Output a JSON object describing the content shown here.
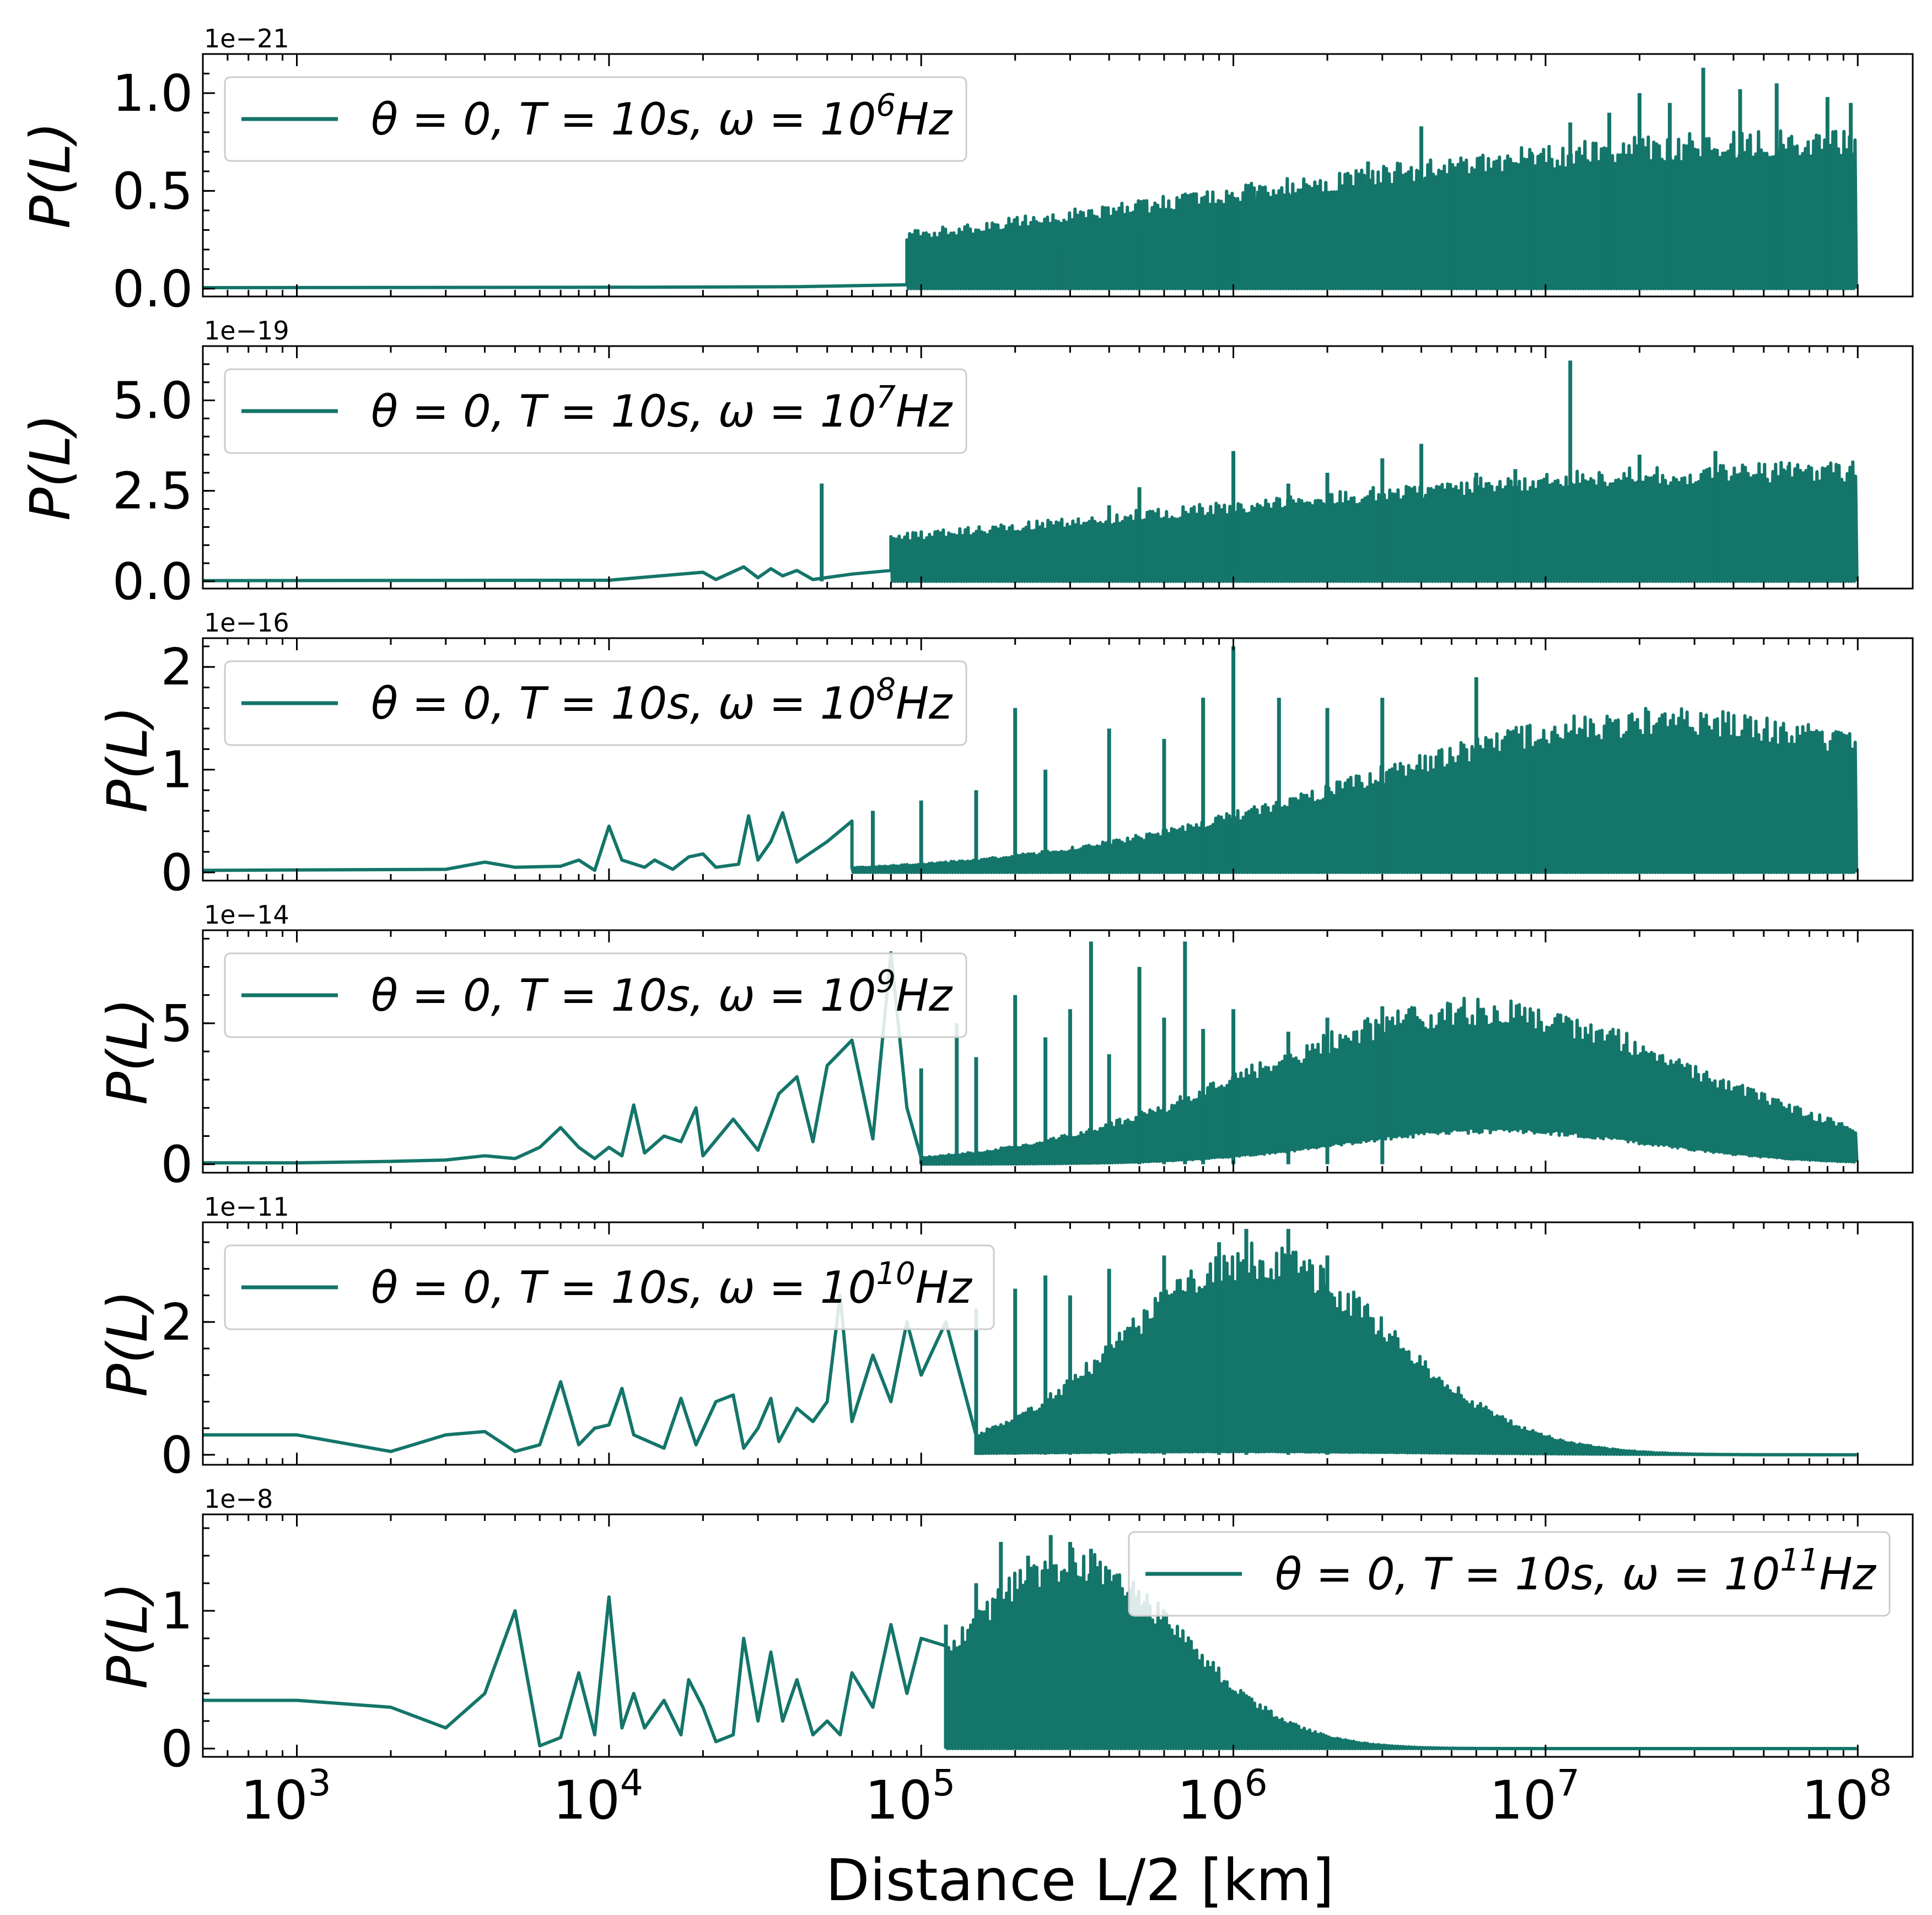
{
  "colors": {
    "series": "#14756a",
    "frame": "#000000",
    "legend_border": "#cccccc",
    "background": "#ffffff"
  },
  "chart_data": [
    {
      "type": "line",
      "exponent_label": "1e−21",
      "ylabel": "P(L)",
      "legend": {
        "theta": "θ = 0,",
        "T": "T = 10s,",
        "omega_base": "ω = 10",
        "omega_exp": "6",
        "unit": "Hz",
        "placement": "upper-left"
      },
      "ylim": [
        -0.04,
        1.2
      ],
      "yticks": [
        0.0,
        0.5,
        1.0
      ],
      "ytick_labels": [
        "0.0",
        "0.5",
        "1.0"
      ],
      "yminor": 0.1,
      "xlim": [
        500,
        150000000
      ],
      "xscale": "log",
      "show_xticklabels": false,
      "envelope": {
        "start": 90000,
        "peak_x": 100000000,
        "peak": 0.82,
        "width": 3.0,
        "low_peak": 0.0,
        "low_x": 1000000,
        "low_width": 1.0
      },
      "pre": [
        [
          500,
          0.005
        ],
        [
          10000,
          0.007
        ],
        [
          40000,
          0.01
        ],
        [
          90000,
          0.02
        ]
      ],
      "spikes": [
        [
          110000,
          0.06
        ],
        [
          200000,
          0.2
        ],
        [
          280000,
          0.18
        ],
        [
          400000,
          0.28
        ],
        [
          500000,
          0.3
        ],
        [
          650000,
          0.32
        ],
        [
          900000,
          0.4
        ],
        [
          1000000,
          0.47
        ],
        [
          1200000,
          0.5
        ],
        [
          1500000,
          0.49
        ],
        [
          1800000,
          0.52
        ],
        [
          2300000,
          0.56
        ],
        [
          2700000,
          0.65
        ],
        [
          4000000,
          0.83
        ],
        [
          5000000,
          0.6
        ],
        [
          7000000,
          0.66
        ],
        [
          9000000,
          0.7
        ],
        [
          12000000,
          0.85
        ],
        [
          16000000,
          0.9
        ],
        [
          20000000,
          1.0
        ],
        [
          25000000,
          0.95
        ],
        [
          32000000,
          1.13
        ],
        [
          42000000,
          1.02
        ],
        [
          55000000,
          1.05
        ],
        [
          80000000,
          0.98
        ],
        [
          95000000,
          0.95
        ]
      ]
    },
    {
      "type": "line",
      "exponent_label": "1e−19",
      "ylabel": "P(L)",
      "legend": {
        "theta": "θ = 0,",
        "T": "T = 10s,",
        "omega_base": "ω = 10",
        "omega_exp": "7",
        "unit": "Hz",
        "placement": "upper-left"
      },
      "ylim": [
        -0.2,
        6.5
      ],
      "yticks": [
        0.0,
        2.5,
        5.0
      ],
      "ytick_labels": [
        "0.0",
        "2.5",
        "5.0"
      ],
      "yminor": 0.5,
      "xlim": [
        500,
        150000000
      ],
      "xscale": "log",
      "show_xticklabels": false,
      "envelope": {
        "start": 80000,
        "peak_x": 100000000,
        "peak": 3.3,
        "width": 3.2,
        "low_peak": 0.0,
        "low_x": 1000000,
        "low_width": 1.0
      },
      "pre": [
        [
          500,
          0.02
        ],
        [
          10000,
          0.03
        ],
        [
          20000,
          0.25
        ],
        [
          22000,
          0.05
        ],
        [
          27000,
          0.4
        ],
        [
          30000,
          0.1
        ],
        [
          33000,
          0.35
        ],
        [
          36000,
          0.15
        ],
        [
          40000,
          0.3
        ],
        [
          45000,
          0.05
        ],
        [
          60000,
          0.2
        ],
        [
          80000,
          0.3
        ]
      ],
      "spikes": [
        [
          48000,
          2.7
        ],
        [
          110000,
          1.2
        ],
        [
          140000,
          1.3
        ],
        [
          200000,
          1.1
        ],
        [
          300000,
          1.5
        ],
        [
          400000,
          2.1
        ],
        [
          500000,
          2.6
        ],
        [
          700000,
          1.9
        ],
        [
          1000000,
          3.6
        ],
        [
          1500000,
          2.7
        ],
        [
          2000000,
          3.0
        ],
        [
          3000000,
          3.4
        ],
        [
          4000000,
          3.8
        ],
        [
          6000000,
          3.0
        ],
        [
          8000000,
          3.1
        ],
        [
          12000000,
          6.1
        ],
        [
          20000000,
          3.5
        ],
        [
          35000000,
          3.6
        ],
        [
          60000000,
          3.2
        ]
      ]
    },
    {
      "type": "line",
      "exponent_label": "1e−16",
      "ylabel": "P(L)",
      "legend": {
        "theta": "θ = 0,",
        "T": "T = 10s,",
        "omega_base": "ω = 10",
        "omega_exp": "8",
        "unit": "Hz",
        "placement": "upper-left"
      },
      "ylim": [
        -0.08,
        2.28
      ],
      "yticks": [
        0,
        1,
        2
      ],
      "ytick_labels": [
        "0",
        "1",
        "2"
      ],
      "yminor": 0.2,
      "xlim": [
        500,
        150000000
      ],
      "xscale": "log",
      "show_xticklabels": false,
      "envelope": {
        "start": 60000,
        "peak_x": 25000000,
        "peak": 1.6,
        "width": 1.4,
        "low_peak": 0.0,
        "low_x": 1000000,
        "low_width": 1.0
      },
      "pre": [
        [
          500,
          0.02
        ],
        [
          3000,
          0.03
        ],
        [
          4000,
          0.1
        ],
        [
          5000,
          0.05
        ],
        [
          7000,
          0.06
        ],
        [
          8000,
          0.12
        ],
        [
          9000,
          0.02
        ],
        [
          10000,
          0.45
        ],
        [
          11000,
          0.12
        ],
        [
          13000,
          0.05
        ],
        [
          14000,
          0.12
        ],
        [
          16000,
          0.03
        ],
        [
          18000,
          0.15
        ],
        [
          20000,
          0.18
        ],
        [
          22000,
          0.05
        ],
        [
          26000,
          0.08
        ],
        [
          28000,
          0.55
        ],
        [
          30000,
          0.12
        ],
        [
          33000,
          0.3
        ],
        [
          36000,
          0.58
        ],
        [
          40000,
          0.1
        ],
        [
          50000,
          0.3
        ],
        [
          60000,
          0.5
        ]
      ],
      "spikes": [
        [
          70000,
          0.6
        ],
        [
          100000,
          0.7
        ],
        [
          150000,
          0.8
        ],
        [
          200000,
          1.6
        ],
        [
          250000,
          1.0
        ],
        [
          400000,
          1.4
        ],
        [
          600000,
          1.3
        ],
        [
          800000,
          1.7
        ],
        [
          1000000,
          2.2
        ],
        [
          1400000,
          1.7
        ],
        [
          2000000,
          1.6
        ],
        [
          3000000,
          1.7
        ],
        [
          6000000,
          1.9
        ],
        [
          9000000,
          1.1
        ]
      ]
    },
    {
      "type": "line",
      "exponent_label": "1e−14",
      "ylabel": "P(L)",
      "legend": {
        "theta": "θ = 0,",
        "T": "T = 10s,",
        "omega_base": "ω = 10",
        "omega_exp": "9",
        "unit": "Hz",
        "placement": "upper-left"
      },
      "ylim": [
        -0.3,
        8.3
      ],
      "yticks": [
        0,
        5
      ],
      "ytick_labels": [
        "0",
        "5"
      ],
      "yminor": 1,
      "xlim": [
        500,
        150000000
      ],
      "xscale": "log",
      "show_xticklabels": false,
      "envelope": {
        "start": 100000,
        "peak_x": 6000000,
        "peak": 5.9,
        "width": 1.0,
        "low_peak": 1.3,
        "low_x": 7000000,
        "low_width": 0.7
      },
      "pre": [
        [
          500,
          0.05
        ],
        [
          1000,
          0.05
        ],
        [
          2000,
          0.1
        ],
        [
          3000,
          0.15
        ],
        [
          4000,
          0.3
        ],
        [
          5000,
          0.2
        ],
        [
          6000,
          0.6
        ],
        [
          7000,
          1.3
        ],
        [
          8000,
          0.6
        ],
        [
          9000,
          0.2
        ],
        [
          10000,
          0.6
        ],
        [
          11000,
          0.3
        ],
        [
          12000,
          2.1
        ],
        [
          13000,
          0.4
        ],
        [
          15000,
          1.0
        ],
        [
          17000,
          0.8
        ],
        [
          19000,
          2.0
        ],
        [
          20000,
          0.3
        ],
        [
          25000,
          1.6
        ],
        [
          30000,
          0.5
        ],
        [
          35000,
          2.5
        ],
        [
          40000,
          3.1
        ],
        [
          45000,
          0.8
        ],
        [
          50000,
          3.5
        ],
        [
          60000,
          4.4
        ],
        [
          70000,
          0.9
        ],
        [
          80000,
          7.5
        ],
        [
          90000,
          2.0
        ]
      ],
      "spikes": [
        [
          100000,
          3.4
        ],
        [
          130000,
          5.0
        ],
        [
          150000,
          3.8
        ],
        [
          200000,
          6.0
        ],
        [
          250000,
          4.5
        ],
        [
          300000,
          5.5
        ],
        [
          350000,
          7.9
        ],
        [
          400000,
          3.9
        ],
        [
          500000,
          7.0
        ],
        [
          600000,
          5.2
        ],
        [
          700000,
          7.9
        ],
        [
          800000,
          4.8
        ],
        [
          1000000,
          5.5
        ],
        [
          1500000,
          4.7
        ],
        [
          2000000,
          5.2
        ],
        [
          3000000,
          5.6
        ]
      ]
    },
    {
      "type": "line",
      "exponent_label": "1e−11",
      "ylabel": "P(L)",
      "legend": {
        "theta": "θ = 0,",
        "T": "T = 10s,",
        "omega_base": "ω = 10",
        "omega_exp": "10",
        "unit": "Hz",
        "placement": "upper-left"
      },
      "ylim": [
        -0.15,
        3.5
      ],
      "yticks": [
        0,
        2
      ],
      "ytick_labels": [
        "0",
        "2"
      ],
      "yminor": 0.4,
      "xlim": [
        500,
        150000000
      ],
      "xscale": "log",
      "show_xticklabels": false,
      "envelope": {
        "start": 150000,
        "peak_x": 1200000,
        "peak": 3.2,
        "width": 0.6,
        "low_peak": 0.05,
        "low_x": 1000000,
        "low_width": 0.9
      },
      "pre": [
        [
          500,
          0.3
        ],
        [
          1000,
          0.3
        ],
        [
          2000,
          0.05
        ],
        [
          3000,
          0.3
        ],
        [
          4000,
          0.35
        ],
        [
          5000,
          0.05
        ],
        [
          6000,
          0.15
        ],
        [
          7000,
          1.1
        ],
        [
          8000,
          0.15
        ],
        [
          9000,
          0.4
        ],
        [
          10000,
          0.45
        ],
        [
          11000,
          1.0
        ],
        [
          12000,
          0.3
        ],
        [
          15000,
          0.1
        ],
        [
          17000,
          0.85
        ],
        [
          19000,
          0.15
        ],
        [
          22000,
          0.8
        ],
        [
          25000,
          0.9
        ],
        [
          27000,
          0.1
        ],
        [
          30000,
          0.4
        ],
        [
          33000,
          0.85
        ],
        [
          35000,
          0.2
        ],
        [
          40000,
          0.7
        ],
        [
          45000,
          0.5
        ],
        [
          50000,
          0.8
        ],
        [
          55000,
          2.4
        ],
        [
          60000,
          0.5
        ],
        [
          70000,
          1.5
        ],
        [
          80000,
          0.8
        ],
        [
          90000,
          2.0
        ],
        [
          100000,
          1.2
        ],
        [
          120000,
          2.0
        ]
      ],
      "spikes": [
        [
          150000,
          2.2
        ],
        [
          200000,
          2.5
        ],
        [
          250000,
          2.7
        ],
        [
          300000,
          2.4
        ],
        [
          400000,
          2.8
        ],
        [
          600000,
          3.0
        ],
        [
          900000,
          3.2
        ],
        [
          1100000,
          3.4
        ],
        [
          1500000,
          3.4
        ],
        [
          2000000,
          3.0
        ]
      ]
    },
    {
      "type": "line",
      "exponent_label": "1e−8",
      "ylabel": "P(L)",
      "legend": {
        "theta": "θ = 0,",
        "T": "T = 10s,",
        "omega_base": "ω = 10",
        "omega_exp": "11",
        "unit": "Hz",
        "placement": "upper-right"
      },
      "ylim": [
        -0.06,
        1.7
      ],
      "yticks": [
        0,
        1
      ],
      "ytick_labels": [
        "0",
        "1"
      ],
      "yminor": 0.2,
      "xlim": [
        500,
        150000000
      ],
      "xscale": "log",
      "show_xticklabels": true,
      "xticks": [
        1000,
        10000,
        100000,
        1000000,
        10000000,
        100000000
      ],
      "xtick_exps": [
        "3",
        "4",
        "5",
        "6",
        "7",
        "8"
      ],
      "xtick_base": "10",
      "xlabel": "Distance L/2 [km]",
      "envelope": {
        "start": 120000,
        "peak_x": 300000,
        "peak": 1.45,
        "width": 0.5,
        "low_peak": 0.0,
        "low_x": 1000000,
        "low_width": 1.0
      },
      "pre": [
        [
          500,
          0.35
        ],
        [
          1000,
          0.35
        ],
        [
          2000,
          0.3
        ],
        [
          3000,
          0.15
        ],
        [
          4000,
          0.4
        ],
        [
          5000,
          1.0
        ],
        [
          6000,
          0.02
        ],
        [
          7000,
          0.08
        ],
        [
          8000,
          0.55
        ],
        [
          9000,
          0.1
        ],
        [
          10000,
          1.1
        ],
        [
          11000,
          0.15
        ],
        [
          12000,
          0.4
        ],
        [
          13000,
          0.15
        ],
        [
          15000,
          0.35
        ],
        [
          17000,
          0.1
        ],
        [
          18000,
          0.5
        ],
        [
          20000,
          0.3
        ],
        [
          22000,
          0.05
        ],
        [
          25000,
          0.1
        ],
        [
          27000,
          0.8
        ],
        [
          30000,
          0.2
        ],
        [
          33000,
          0.7
        ],
        [
          36000,
          0.2
        ],
        [
          40000,
          0.5
        ],
        [
          45000,
          0.1
        ],
        [
          50000,
          0.2
        ],
        [
          55000,
          0.1
        ],
        [
          60000,
          0.55
        ],
        [
          70000,
          0.3
        ],
        [
          80000,
          0.9
        ],
        [
          90000,
          0.4
        ],
        [
          100000,
          0.8
        ]
      ],
      "spikes": [
        [
          120000,
          0.9
        ],
        [
          150000,
          1.2
        ],
        [
          180000,
          1.5
        ],
        [
          220000,
          1.4
        ],
        [
          260000,
          1.55
        ],
        [
          300000,
          1.5
        ],
        [
          350000,
          1.45
        ],
        [
          400000,
          1.3
        ]
      ]
    }
  ]
}
